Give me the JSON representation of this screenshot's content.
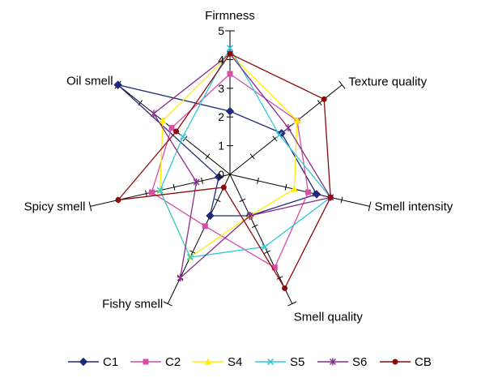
{
  "chart_data": {
    "type": "radar",
    "axes": [
      "Firmness",
      "Texture quality",
      "Smell intensity",
      "Smell quality",
      "Fishy smell",
      "Spicy smell",
      "Oil smell"
    ],
    "radial_ticks": [
      "0",
      "1",
      "2",
      "3",
      "4",
      "5"
    ],
    "rmax": 5,
    "legend_position": "bottom",
    "series": [
      {
        "name": "C1",
        "color": "#1f2a7a",
        "marker": "diamond",
        "values": [
          2.2,
          2.3,
          3.1,
          1.6,
          1.6,
          0.4,
          5.0
        ]
      },
      {
        "name": "C2",
        "color": "#d54fa6",
        "marker": "square",
        "values": [
          3.5,
          3.0,
          2.8,
          3.6,
          2.0,
          2.8,
          2.6
        ]
      },
      {
        "name": "S4",
        "color": "#ffee00",
        "marker": "triangle",
        "values": [
          4.2,
          3.0,
          2.3,
          1.6,
          3.2,
          2.5,
          3.0
        ]
      },
      {
        "name": "S5",
        "color": "#33c8d8",
        "marker": "x",
        "values": [
          4.4,
          2.2,
          3.6,
          2.8,
          3.2,
          2.5,
          2.1
        ]
      },
      {
        "name": "S6",
        "color": "#8a2d8a",
        "marker": "star",
        "values": [
          4.2,
          2.6,
          3.6,
          1.6,
          4.0,
          1.2,
          3.4
        ]
      },
      {
        "name": "CB",
        "color": "#8b0a0a",
        "marker": "circle",
        "values": [
          4.2,
          4.2,
          3.6,
          4.4,
          0.5,
          4.0,
          2.4
        ]
      }
    ]
  }
}
